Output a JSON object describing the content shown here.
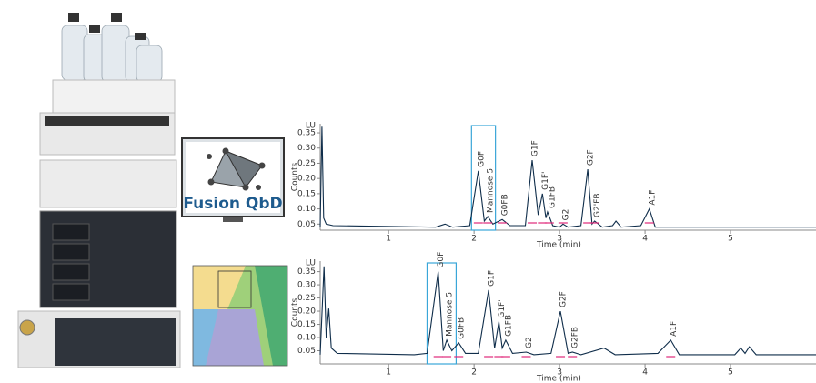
{
  "software": {
    "label": "Fusion QbD"
  },
  "chart_data": [
    {
      "type": "line",
      "y_unit": "LU",
      "ylabel": "Counts",
      "xlabel": "Time (min)",
      "xlim": [
        0.2,
        6.0
      ],
      "xticks": [
        1,
        2,
        3,
        4,
        5
      ],
      "ylim": [
        0.03,
        0.38
      ],
      "yticks": [
        0.05,
        {
          "value": 0.1,
          "label": "0.10"
        },
        0.15,
        {
          "value": 0.2,
          "label": "0.20"
        },
        0.25,
        {
          "value": 0.3,
          "label": "0.30"
        },
        0.35
      ],
      "highlight_x": [
        1.97,
        2.25
      ],
      "highlight_color": "#3aa6d8",
      "series": [
        {
          "color": "#0f2d4a",
          "x": [
            0.2,
            0.22,
            0.24,
            0.27,
            0.35,
            1.55,
            1.66,
            1.75,
            1.95,
            2.05,
            2.12,
            2.16,
            2.22,
            2.33,
            2.42,
            2.6,
            2.68,
            2.75,
            2.8,
            2.84,
            2.86,
            2.92,
            3.0,
            3.04,
            3.1,
            3.25,
            3.33,
            3.38,
            3.41,
            3.5,
            3.62,
            3.66,
            3.72,
            3.95,
            4.05,
            4.12,
            4.5,
            6.0
          ],
          "values": [
            0.04,
            0.37,
            0.07,
            0.05,
            0.045,
            0.04,
            0.05,
            0.04,
            0.045,
            0.225,
            0.06,
            0.075,
            0.05,
            0.065,
            0.045,
            0.045,
            0.26,
            0.08,
            0.15,
            0.07,
            0.09,
            0.045,
            0.04,
            0.05,
            0.04,
            0.045,
            0.23,
            0.05,
            0.06,
            0.04,
            0.045,
            0.06,
            0.04,
            0.045,
            0.1,
            0.04,
            0.04,
            0.04
          ]
        }
      ],
      "annotations": [
        {
          "text": "G0F",
          "x": 2.05,
          "y": 0.225
        },
        {
          "text": "Mannose 5",
          "x": 2.16,
          "y": 0.075
        },
        {
          "text": "G0FB",
          "x": 2.33,
          "y": 0.065
        },
        {
          "text": "G1F",
          "x": 2.68,
          "y": 0.26
        },
        {
          "text": "G1F'",
          "x": 2.8,
          "y": 0.15
        },
        {
          "text": "G1FB",
          "x": 2.88,
          "y": 0.09
        },
        {
          "text": "G2",
          "x": 3.04,
          "y": 0.05
        },
        {
          "text": "G2F",
          "x": 3.33,
          "y": 0.23
        },
        {
          "text": "G2'FB",
          "x": 3.41,
          "y": 0.06
        },
        {
          "text": "A1F",
          "x": 4.05,
          "y": 0.1
        }
      ]
    },
    {
      "type": "line",
      "y_unit": "LU",
      "ylabel": "Counts",
      "xlabel": "Time (min)",
      "xlim": [
        0.2,
        6.0
      ],
      "xticks": [
        1,
        2,
        3,
        4,
        5
      ],
      "ylim": [
        0.0,
        0.39
      ],
      "yticks": [
        0.05,
        {
          "value": 0.1,
          "label": "0.10"
        },
        0.15,
        {
          "value": 0.2,
          "label": "0.20"
        },
        0.25,
        {
          "value": 0.3,
          "label": "0.30"
        },
        0.35
      ],
      "highlight_x": [
        1.45,
        1.79
      ],
      "highlight_color": "#3aa6d8",
      "series": [
        {
          "color": "#0f2d4a",
          "x": [
            0.2,
            0.245,
            0.27,
            0.3,
            0.33,
            0.4,
            1.3,
            1.45,
            1.58,
            1.64,
            1.68,
            1.74,
            1.82,
            1.9,
            2.05,
            2.17,
            2.24,
            2.29,
            2.33,
            2.37,
            2.45,
            2.61,
            2.7,
            2.9,
            3.01,
            3.1,
            3.15,
            3.25,
            3.52,
            3.65,
            4.15,
            4.3,
            4.4,
            5.05,
            5.12,
            5.17,
            5.22,
            5.3,
            6.0
          ],
          "values": [
            0.035,
            0.37,
            0.1,
            0.21,
            0.06,
            0.04,
            0.035,
            0.04,
            0.35,
            0.05,
            0.09,
            0.05,
            0.08,
            0.04,
            0.04,
            0.28,
            0.06,
            0.16,
            0.06,
            0.09,
            0.04,
            0.045,
            0.035,
            0.04,
            0.2,
            0.04,
            0.045,
            0.035,
            0.06,
            0.035,
            0.04,
            0.09,
            0.035,
            0.035,
            0.06,
            0.04,
            0.065,
            0.035,
            0.035
          ]
        }
      ],
      "annotations": [
        {
          "text": "G0F",
          "x": 1.58,
          "y": 0.35
        },
        {
          "text": "Mannose 5",
          "x": 1.68,
          "y": 0.09
        },
        {
          "text": "G0FB",
          "x": 1.82,
          "y": 0.08
        },
        {
          "text": "G1F",
          "x": 2.17,
          "y": 0.28
        },
        {
          "text": "G1F'",
          "x": 2.29,
          "y": 0.16
        },
        {
          "text": "G1FB",
          "x": 2.37,
          "y": 0.09
        },
        {
          "text": "G2",
          "x": 2.61,
          "y": 0.045
        },
        {
          "text": "G2F",
          "x": 3.01,
          "y": 0.2
        },
        {
          "text": "G2FB",
          "x": 3.15,
          "y": 0.045
        },
        {
          "text": "A1F",
          "x": 4.3,
          "y": 0.09
        }
      ]
    }
  ]
}
